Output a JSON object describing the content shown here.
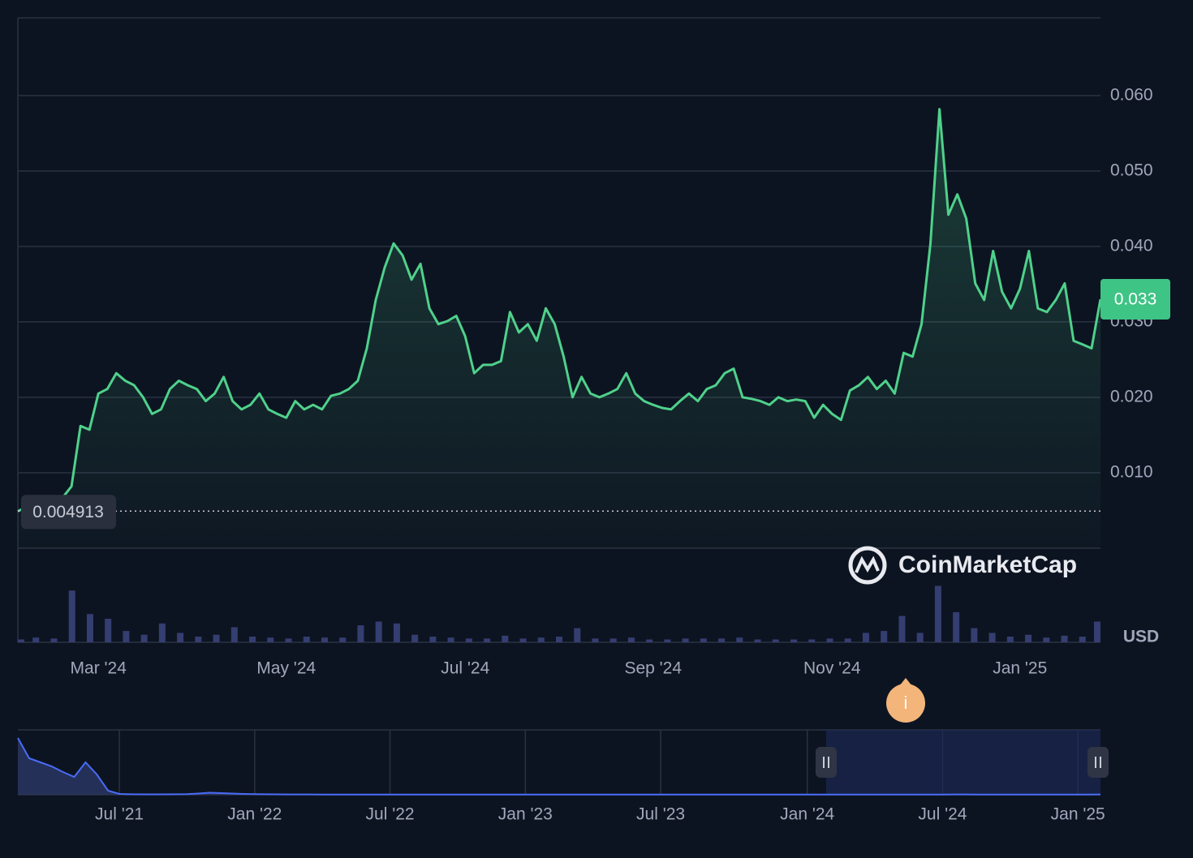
{
  "chart_data": [
    {
      "type": "line",
      "name": "price",
      "color": "#4fd18b",
      "categories": [
        null,
        null,
        null,
        null,
        null,
        null,
        null,
        null,
        null,
        "Mar '24",
        null,
        null,
        null,
        null,
        null,
        null,
        null,
        null,
        null,
        null,
        null,
        null,
        null,
        null,
        null,
        null,
        null,
        null,
        null,
        null,
        "May '24",
        null,
        null,
        null,
        null,
        null,
        null,
        null,
        null,
        null,
        null,
        null,
        null,
        null,
        null,
        null,
        null,
        null,
        null,
        null,
        "Jul '24",
        null,
        null,
        null,
        null,
        null,
        null,
        null,
        null,
        null,
        null,
        null,
        null,
        null,
        null,
        null,
        null,
        null,
        null,
        null,
        null,
        "Sep '24",
        null,
        null,
        null,
        null,
        null,
        null,
        null,
        null,
        null,
        null,
        null,
        null,
        null,
        null,
        null,
        null,
        null,
        null,
        null,
        "Nov '24",
        null,
        null,
        null,
        null,
        null,
        null,
        null,
        null,
        null,
        null,
        null,
        null,
        null,
        null,
        null,
        null,
        null,
        null,
        null,
        null,
        "Jan '25",
        null,
        null,
        null,
        null,
        null,
        null,
        null,
        null,
        null
      ],
      "values": [
        0.0049,
        0.0055,
        0.0058,
        0.0062,
        0.0065,
        0.0067,
        0.0082,
        0.0162,
        0.0157,
        0.0205,
        0.0211,
        0.0232,
        0.0222,
        0.0216,
        0.02,
        0.0178,
        0.0184,
        0.0211,
        0.0222,
        0.0216,
        0.0211,
        0.0195,
        0.0205,
        0.0227,
        0.0195,
        0.0184,
        0.019,
        0.0205,
        0.0184,
        0.0178,
        0.0173,
        0.0195,
        0.0184,
        0.019,
        0.0184,
        0.0202,
        0.0205,
        0.0211,
        0.0222,
        0.0265,
        0.0329,
        0.0372,
        0.0404,
        0.0388,
        0.0356,
        0.0377,
        0.0318,
        0.0297,
        0.0301,
        0.0308,
        0.0281,
        0.0232,
        0.0243,
        0.0243,
        0.0248,
        0.0313,
        0.0286,
        0.0297,
        0.0275,
        0.0318,
        0.0297,
        0.0254,
        0.02,
        0.0227,
        0.0205,
        0.02,
        0.0205,
        0.0211,
        0.0232,
        0.0205,
        0.0195,
        0.019,
        0.0186,
        0.0184,
        0.0195,
        0.0205,
        0.0195,
        0.0211,
        0.0216,
        0.0232,
        0.0238,
        0.02,
        0.0198,
        0.0195,
        0.019,
        0.02,
        0.0195,
        0.0197,
        0.0195,
        0.0173,
        0.019,
        0.0178,
        0.017,
        0.0209,
        0.0216,
        0.0227,
        0.0211,
        0.0222,
        0.0205,
        0.0259,
        0.0254,
        0.0297,
        0.0404,
        0.0582,
        0.0442,
        0.0469,
        0.0437,
        0.0351,
        0.0329,
        0.0394,
        0.034,
        0.0318,
        0.0344,
        0.0394,
        0.0318,
        0.0313,
        0.0329,
        0.0351,
        0.0275,
        0.027,
        0.0265,
        0.033
      ],
      "ylim": [
        0,
        0.0703
      ],
      "yticks": [
        {
          "value": 0.01,
          "label": "0.010"
        },
        {
          "value": 0.02,
          "label": "0.020"
        },
        {
          "value": 0.03,
          "label": "0.030"
        },
        {
          "value": 0.04,
          "label": "0.040"
        },
        {
          "value": 0.05,
          "label": "0.050"
        },
        {
          "value": 0.06,
          "label": "0.060"
        }
      ],
      "grid": true,
      "start_price": 0.004913,
      "current_price": 0.033,
      "currency": "USD",
      "watermark": "CoinMarketCap"
    },
    {
      "type": "bar",
      "name": "volume",
      "color": "#38427a",
      "values": [
        3,
        5,
        4,
        55,
        30,
        25,
        12,
        8,
        20,
        10,
        6,
        8,
        16,
        6,
        5,
        4,
        6,
        5,
        5,
        18,
        22,
        20,
        8,
        6,
        5,
        4,
        4,
        7,
        4,
        5,
        6,
        15,
        4,
        4,
        5,
        3,
        3,
        4,
        4,
        4,
        5,
        3,
        3,
        3,
        3,
        4,
        4,
        10,
        12,
        28,
        10,
        60,
        32,
        15,
        10,
        6,
        8,
        5,
        7,
        6,
        22
      ],
      "ylim": [
        0,
        100
      ]
    },
    {
      "type": "area",
      "name": "navigator",
      "color": "#4a6cf7",
      "categories": [
        null,
        null,
        null,
        null,
        null,
        null,
        null,
        null,
        null,
        "Jul '21",
        null,
        null,
        null,
        null,
        null,
        null,
        null,
        null,
        null,
        null,
        null,
        "Jan '22",
        null,
        null,
        null,
        null,
        null,
        null,
        null,
        null,
        null,
        null,
        null,
        "Jul '22",
        null,
        null,
        null,
        null,
        null,
        null,
        null,
        null,
        null,
        null,
        null,
        "Jan '23",
        null,
        null,
        null,
        null,
        null,
        null,
        null,
        null,
        null,
        null,
        null,
        "Jul '23",
        null,
        null,
        null,
        null,
        null,
        null,
        null,
        null,
        null,
        null,
        null,
        null,
        "Jan '24",
        null,
        null,
        null,
        null,
        null,
        null,
        null,
        null,
        null,
        null,
        null,
        "Jul '24",
        null,
        null,
        null,
        null,
        null,
        null,
        null,
        null,
        null,
        null,
        null,
        "Jan '25",
        null,
        null
      ],
      "values": [
        70,
        45,
        40,
        35,
        28,
        22,
        40,
        25,
        5,
        1,
        0.6,
        0.5,
        0.5,
        0.5,
        0.6,
        0.8,
        1.5,
        2.5,
        2,
        1.5,
        1,
        0.8,
        0.6,
        0.5,
        0.4,
        0.4,
        0.4,
        0.3,
        0.3,
        0.3,
        0.3,
        0.3,
        0.3,
        0.3,
        0.3,
        0.3,
        0.3,
        0.3,
        0.3,
        0.3,
        0.3,
        0.3,
        0.3,
        0.3,
        0.3,
        0.3,
        0.3,
        0.3,
        0.3,
        0.3,
        0.3,
        0.3,
        0.3,
        0.3,
        0.3,
        0.3,
        0.3,
        0.3,
        0.3,
        0.3,
        0.3,
        0.3,
        0.3,
        0.3,
        0.3,
        0.3,
        0.3,
        0.3,
        0.3,
        0.3,
        0.3,
        0.3,
        0.3,
        0.3,
        0.3,
        0.3,
        0.3,
        0.3,
        0.3,
        0.3,
        0.3,
        0.3,
        0.3,
        0.4,
        0.4,
        0.3,
        0.3,
        0.3,
        0.3,
        0.3,
        0.3,
        0.3,
        0.3,
        0.3,
        0.3,
        0.3,
        0.4
      ],
      "ylim": [
        0,
        80
      ]
    }
  ]
}
